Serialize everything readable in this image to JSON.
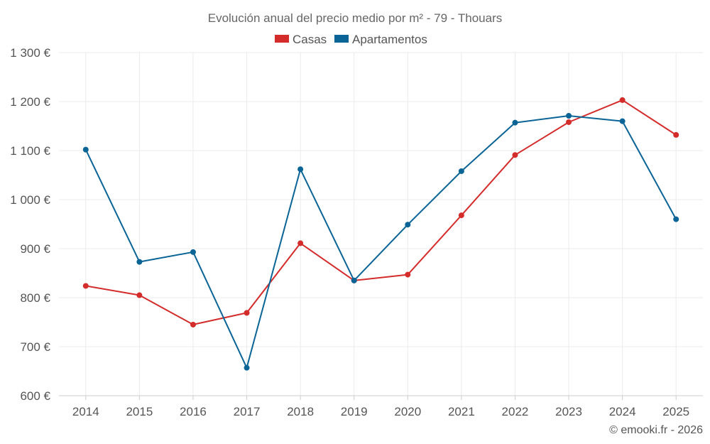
{
  "chart_data": {
    "type": "line",
    "title": "Evolución anual del precio medio por m² - 79 - Thouars",
    "categories": [
      "2014",
      "2015",
      "2016",
      "2017",
      "2018",
      "2019",
      "2020",
      "2021",
      "2022",
      "2023",
      "2024",
      "2025"
    ],
    "series": [
      {
        "name": "Casas",
        "color": "#d42b2b",
        "values": [
          824,
          805,
          745,
          769,
          911,
          835,
          847,
          968,
          1091,
          1158,
          1203,
          1132
        ]
      },
      {
        "name": "Apartamentos",
        "color": "#0a6496",
        "values": [
          1102,
          873,
          893,
          657,
          1062,
          835,
          949,
          1058,
          1157,
          1171,
          1160,
          960
        ]
      }
    ],
    "y_ticks": [
      600,
      700,
      800,
      900,
      1000,
      1100,
      1200,
      1300
    ],
    "y_tick_labels": [
      "600 €",
      "700 €",
      "800 €",
      "900 €",
      "1 000 €",
      "1 100 €",
      "1 200 €",
      "1 300 €"
    ],
    "ylim": [
      600,
      1300
    ],
    "xlabel": "",
    "ylabel": "",
    "grid": true,
    "legend_position": "top-center"
  },
  "credit": "© emooki.fr - 2026"
}
